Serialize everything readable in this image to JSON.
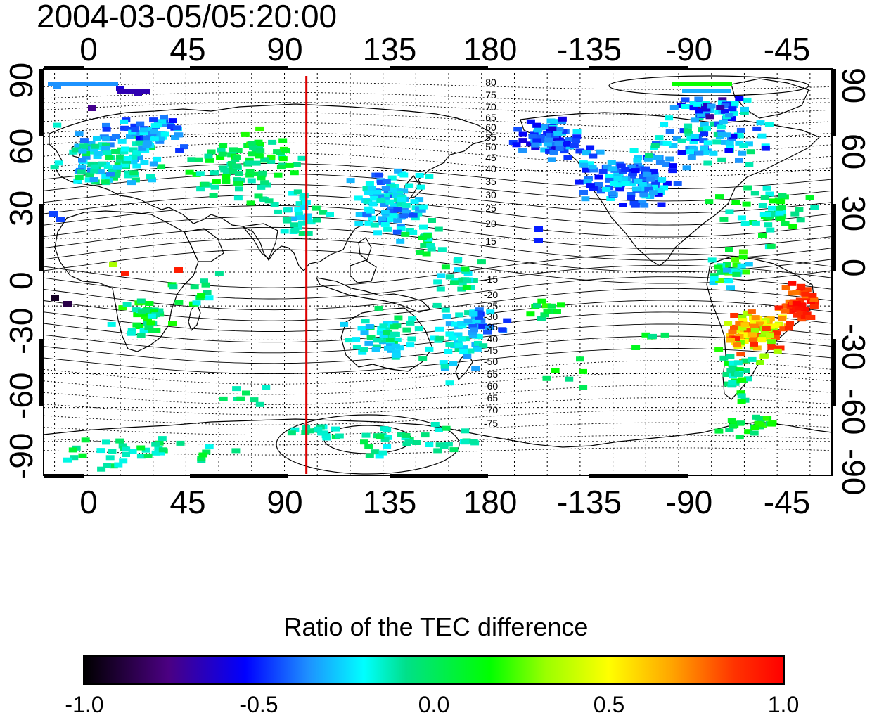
{
  "timestamp": "2004-03-05/05:20:00",
  "lon_ticks": [
    "0",
    "45",
    "90",
    "135",
    "180",
    "-135",
    "-90",
    "-45"
  ],
  "lat_ticks_left": [
    "90",
    "60",
    "30",
    "0",
    "-30",
    "-60",
    "-90"
  ],
  "lat_ticks_right": [
    "90",
    "60",
    "30",
    "0",
    "-30",
    "-60",
    "-90"
  ],
  "contour_labels": [
    "80",
    "75",
    "70",
    "65",
    "60",
    "55",
    "50",
    "45",
    "40",
    "35",
    "30",
    "25",
    "20",
    "15",
    "-15",
    "-20",
    "-25",
    "-30",
    "-35",
    "-40",
    "-45",
    "-50",
    "-55",
    "-60",
    "-65",
    "-70",
    "-75"
  ],
  "terminator_longitude": 100,
  "colorbar": {
    "title": "Ratio of the TEC difference",
    "ticks": [
      "-1.0",
      "-0.5",
      "0.0",
      "0.5",
      "1.0"
    ],
    "range": [
      -1.0,
      1.0
    ],
    "colors": [
      "#000000",
      "#4b0082",
      "#0000ff",
      "#1e90ff",
      "#00ffff",
      "#00e08a",
      "#00ff00",
      "#9aff00",
      "#ffff00",
      "#ffa500",
      "#ff3300",
      "#ff0000"
    ]
  },
  "colors": {
    "terminator": "#dd0000",
    "coastline": "#000000",
    "grid": "#000000"
  }
}
